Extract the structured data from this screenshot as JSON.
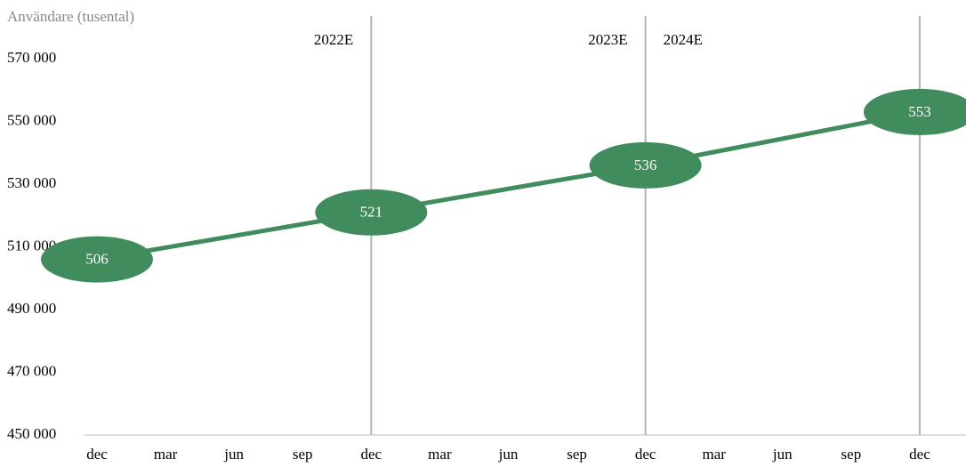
{
  "chart_data": {
    "type": "line",
    "y_axis_label": "Användare (tusental)",
    "categories": [
      "dec",
      "mar",
      "jun",
      "sep",
      "dec",
      "mar",
      "jun",
      "sep",
      "dec",
      "mar",
      "jun",
      "sep",
      "dec"
    ],
    "series": [
      {
        "name": "Användare",
        "color": "#418c5d",
        "values": [
          506000,
          null,
          null,
          null,
          521000,
          null,
          null,
          null,
          536000,
          null,
          null,
          null,
          553000
        ],
        "value_labels": [
          "506",
          null,
          null,
          null,
          "521",
          null,
          null,
          null,
          "536",
          null,
          null,
          null,
          "553"
        ]
      }
    ],
    "ylim": [
      450000,
      570000
    ],
    "yticks": [
      {
        "value": 450000,
        "label": "450 000"
      },
      {
        "value": 470000,
        "label": "470 000"
      },
      {
        "value": 490000,
        "label": "490 000"
      },
      {
        "value": 510000,
        "label": "510 000"
      },
      {
        "value": 530000,
        "label": "530 000"
      },
      {
        "value": 550000,
        "label": "550 000"
      },
      {
        "value": 570000,
        "label": "570 000"
      }
    ],
    "annotations": [
      {
        "text": "2022E",
        "category": 4,
        "side": "left"
      },
      {
        "text": "2023E",
        "category": 8,
        "side": "left"
      },
      {
        "text": "2024E",
        "category": 8,
        "side": "right"
      }
    ],
    "vlines": [
      4,
      8,
      12
    ]
  }
}
